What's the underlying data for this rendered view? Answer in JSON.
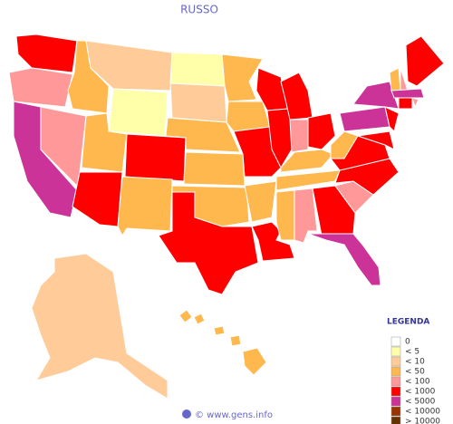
{
  "title": "RUSSO",
  "legend": {
    "title": "LEGENDA",
    "items": [
      {
        "label": "0",
        "color": "#ffffff"
      },
      {
        "label": "< 5",
        "color": "#ffffaa"
      },
      {
        "label": "< 10",
        "color": "#ffcc99"
      },
      {
        "label": "< 50",
        "color": "#ffb84d"
      },
      {
        "label": "< 100",
        "color": "#ff9999"
      },
      {
        "label": "< 1000",
        "color": "#ff0000"
      },
      {
        "label": "< 5000",
        "color": "#cc3399"
      },
      {
        "label": "< 10000",
        "color": "#993300"
      },
      {
        "label": "> 10000",
        "color": "#663300"
      }
    ]
  },
  "region_colors": [
    "#ff0000",
    "#ff9999",
    "#cc3399",
    "#ff9999",
    "#ffb84d",
    "#ffcc99",
    "#ffffaa",
    "#ffb84d",
    "#ff0000",
    "#ff0000",
    "#ffb84d",
    "#ffffaa",
    "#ffcc99",
    "#ffb84d",
    "#ffb84d",
    "#ffb84d",
    "#ff0000",
    "#ffb84d",
    "#ffb84d",
    "#ff0000",
    "#ffb84d",
    "#ff0000",
    "#ff0000",
    "#ff0000",
    "#ff0000",
    "#ff9999",
    "#ff0000",
    "#ffb84d",
    "#ffb84d",
    "#ffb84d",
    "#ff9999",
    "#ff0000",
    "#cc3399",
    "#ff9999",
    "#ff0000",
    "#ff0000",
    "#ffb84d",
    "#cc3399",
    "#cc3399",
    "#ff0000",
    "#ff0000",
    "#ffb84d",
    "#ff9999",
    "#ff0000",
    "#cc3399",
    "#ff0000",
    "#ff9999",
    "#ffcc99",
    "#ffb84d",
    "#ffb84d",
    "#ffb84d",
    "#ffb84d",
    "#ffb84d"
  ],
  "footer": "© www.gens.info"
}
